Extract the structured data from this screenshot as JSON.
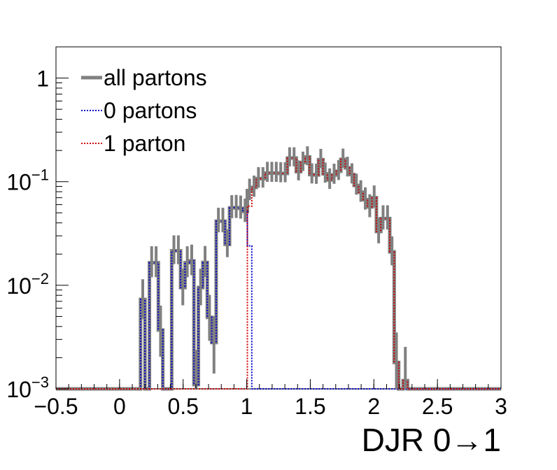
{
  "chart_data": {
    "type": "histogram-step",
    "xlabel": "DJR 0→1",
    "ylabel": "",
    "xlim": [
      -0.5,
      3.0
    ],
    "ylim": [
      0.001,
      2.0
    ],
    "yscale": "log",
    "legend": "top-left",
    "x_ticks": [
      {
        "value": -0.5,
        "label": "−0.5"
      },
      {
        "value": 0,
        "label": "0"
      },
      {
        "value": 0.5,
        "label": "0.5"
      },
      {
        "value": 1,
        "label": "1"
      },
      {
        "value": 1.5,
        "label": "1.5"
      },
      {
        "value": 2,
        "label": "2"
      },
      {
        "value": 2.5,
        "label": "2.5"
      },
      {
        "value": 3,
        "label": "3"
      }
    ],
    "y_ticks": [
      {
        "value": 0.001,
        "base": "10",
        "exp": "−3"
      },
      {
        "value": 0.01,
        "base": "10",
        "exp": "−2"
      },
      {
        "value": 0.1,
        "base": "10",
        "exp": "−1"
      },
      {
        "value": 1,
        "base": "1",
        "exp": ""
      }
    ],
    "bin_start": -0.5,
    "bin_width": 0.035,
    "series": [
      {
        "name": "all partons",
        "color": "#808080",
        "style": "solid",
        "values": [
          0.001,
          0.001,
          0.001,
          0.001,
          0.001,
          0.001,
          0.001,
          0.001,
          0.001,
          0.001,
          0.001,
          0.001,
          0.001,
          0.001,
          0.001,
          0.001,
          0.001,
          0.001,
          0.001,
          0.0073,
          0.001,
          0.0165,
          0.0165,
          0.0037,
          0.001,
          0.001,
          0.0215,
          0.0215,
          0.0095,
          0.0165,
          0.0172,
          0.0011,
          0.0095,
          0.0166,
          0.0049,
          0.0028,
          0.0415,
          0.0415,
          0.0248,
          0.0558,
          0.0561,
          0.0553,
          0.0515,
          0.082,
          0.088,
          0.107,
          0.107,
          0.121,
          0.121,
          0.121,
          0.12,
          0.12,
          0.169,
          0.169,
          0.125,
          0.153,
          0.173,
          0.117,
          0.116,
          0.163,
          0.119,
          0.104,
          0.116,
          0.126,
          0.164,
          0.136,
          0.117,
          0.092,
          0.079,
          0.067,
          0.057,
          0.07,
          0.033,
          0.044,
          0.044,
          0.021,
          0.0018,
          0.001,
          0.0012,
          0.001,
          0.001,
          0.001,
          0.001,
          0.001,
          0.001,
          0.001,
          0.001,
          0.001,
          0.001,
          0.001,
          0.001,
          0.001,
          0.001,
          0.001,
          0.001,
          0.001,
          0.001,
          0.001,
          0.001,
          0.001
        ]
      },
      {
        "name": "0 partons",
        "color": "#0000cc",
        "style": "dotted",
        "values": [
          0.001,
          0.001,
          0.001,
          0.001,
          0.001,
          0.001,
          0.001,
          0.001,
          0.001,
          0.001,
          0.001,
          0.001,
          0.001,
          0.001,
          0.001,
          0.001,
          0.001,
          0.001,
          0.001,
          0.0073,
          0.001,
          0.0165,
          0.0165,
          0.0037,
          0.001,
          0.001,
          0.0215,
          0.0215,
          0.0095,
          0.0165,
          0.0172,
          0.0011,
          0.0095,
          0.0166,
          0.0049,
          0.0028,
          0.0415,
          0.0415,
          0.0248,
          0.0558,
          0.0561,
          0.0553,
          0.0515,
          0.024,
          0.001,
          0.001,
          0.001,
          0.001,
          0.001,
          0.001,
          0.001,
          0.001,
          0.001,
          0.001,
          0.001,
          0.001,
          0.001,
          0.001,
          0.001,
          0.001,
          0.001,
          0.001,
          0.001,
          0.001,
          0.001,
          0.001,
          0.001,
          0.001,
          0.001,
          0.001,
          0.001,
          0.001,
          0.001,
          0.001,
          0.001,
          0.001,
          0.001,
          0.001,
          0.001,
          0.001,
          0.001,
          0.001,
          0.001,
          0.001,
          0.001,
          0.001,
          0.001,
          0.001,
          0.001,
          0.001,
          0.001,
          0.001,
          0.001,
          0.001,
          0.001,
          0.001,
          0.001,
          0.001,
          0.001,
          0.001
        ]
      },
      {
        "name": "1 parton",
        "color": "#cc0000",
        "style": "dotted",
        "values": [
          0.001,
          0.001,
          0.001,
          0.001,
          0.001,
          0.001,
          0.001,
          0.001,
          0.001,
          0.001,
          0.001,
          0.001,
          0.001,
          0.001,
          0.001,
          0.001,
          0.001,
          0.001,
          0.001,
          0.001,
          0.001,
          0.001,
          0.001,
          0.001,
          0.001,
          0.001,
          0.001,
          0.001,
          0.001,
          0.001,
          0.001,
          0.001,
          0.001,
          0.001,
          0.001,
          0.001,
          0.001,
          0.001,
          0.001,
          0.001,
          0.001,
          0.001,
          0.001,
          0.058,
          0.088,
          0.107,
          0.107,
          0.121,
          0.121,
          0.121,
          0.12,
          0.12,
          0.169,
          0.169,
          0.125,
          0.153,
          0.173,
          0.117,
          0.116,
          0.163,
          0.119,
          0.104,
          0.116,
          0.126,
          0.164,
          0.136,
          0.117,
          0.092,
          0.079,
          0.067,
          0.057,
          0.07,
          0.033,
          0.044,
          0.044,
          0.021,
          0.0018,
          0.001,
          0.0012,
          0.001,
          0.001,
          0.001,
          0.001,
          0.001,
          0.001,
          0.001,
          0.001,
          0.001,
          0.001,
          0.001,
          0.001,
          0.001,
          0.001,
          0.001,
          0.001,
          0.001,
          0.001,
          0.001,
          0.001,
          0.001
        ]
      }
    ]
  }
}
